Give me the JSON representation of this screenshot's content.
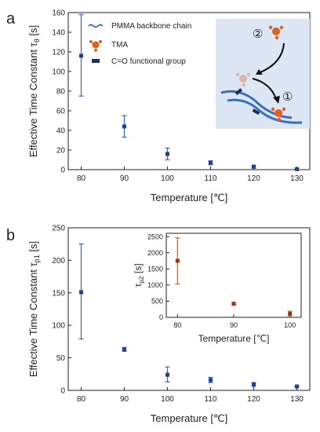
{
  "chart_data": [
    {
      "type": "scatter",
      "panel_label": "a",
      "title": "",
      "xlabel": "Temperature [℃]",
      "ylabel_prefix": "Effective Time Constant",
      "ylabel_symbol": "τ",
      "ylabel_sub": "θ",
      "ylabel_unit": "[s]",
      "xlim": [
        77,
        133
      ],
      "ylim": [
        0,
        160
      ],
      "xticks": [
        80,
        90,
        100,
        110,
        120,
        130
      ],
      "yticks": [
        0,
        20,
        40,
        60,
        80,
        100,
        120,
        140,
        160
      ],
      "grid": false,
      "marker_color": "#1f3f8f",
      "errorbar_color": "#3b63b8",
      "series": [
        {
          "x": [
            80,
            90,
            100,
            110,
            120,
            130
          ],
          "y": [
            116,
            44,
            16,
            7,
            3,
            0.5
          ],
          "err_low": [
            75,
            33,
            10,
            5,
            1.5,
            0
          ],
          "err_high": [
            158,
            55,
            22,
            9,
            4.5,
            1
          ]
        }
      ],
      "legend": {
        "placement": "top-right",
        "items": [
          {
            "label": "PMMA backbone chain",
            "icon": "wavy-line-icon"
          },
          {
            "label": "TMA",
            "icon": "tma-molecule-icon"
          },
          {
            "label": "C=O functional group",
            "icon": "carbonyl-bar-icon"
          }
        ]
      },
      "schematic": {
        "step_labels": [
          "②",
          "①"
        ],
        "background": "#dce6f5",
        "chain_color": "#3a6fc0",
        "tma_color": "#e06020",
        "group_color": "#1c2f5e"
      }
    },
    {
      "type": "scatter",
      "panel_label": "b",
      "title": "",
      "xlabel": "Temperature [℃]",
      "ylabel_prefix": "Effective Time Constant",
      "ylabel_symbol": "τ",
      "ylabel_sub": "p1",
      "ylabel_unit": "[s]",
      "xlim": [
        77,
        133
      ],
      "ylim": [
        0,
        250
      ],
      "xticks": [
        80,
        90,
        100,
        110,
        120,
        130
      ],
      "yticks": [
        0,
        50,
        100,
        150,
        200,
        250
      ],
      "grid": false,
      "marker_color": "#1f3f8f",
      "errorbar_color": "#3b63b8",
      "series": [
        {
          "x": [
            80,
            90,
            100,
            110,
            120,
            130
          ],
          "y": [
            151,
            63,
            24,
            16,
            9,
            6
          ],
          "err_low": [
            79,
            60,
            13,
            12,
            6,
            5
          ],
          "err_high": [
            225,
            66,
            36,
            20,
            12,
            7
          ]
        }
      ],
      "inset": {
        "xlabel": "Temperature [℃]",
        "ylabel_symbol": "τ",
        "ylabel_sub": "p2",
        "ylabel_unit": "[s]",
        "xlim": [
          78,
          102
        ],
        "ylim": [
          0,
          2600
        ],
        "xticks": [
          80,
          90,
          100
        ],
        "yticks": [
          0,
          500,
          1000,
          1500,
          2000,
          2500
        ],
        "marker_color": "#a03018",
        "errorbar_color": "#a66a40",
        "series": [
          {
            "x": [
              80,
              90,
              100
            ],
            "y": [
              1750,
              420,
              110
            ],
            "err_low": [
              1030,
              380,
              50
            ],
            "err_high": [
              2460,
              460,
              190
            ]
          }
        ]
      }
    }
  ]
}
